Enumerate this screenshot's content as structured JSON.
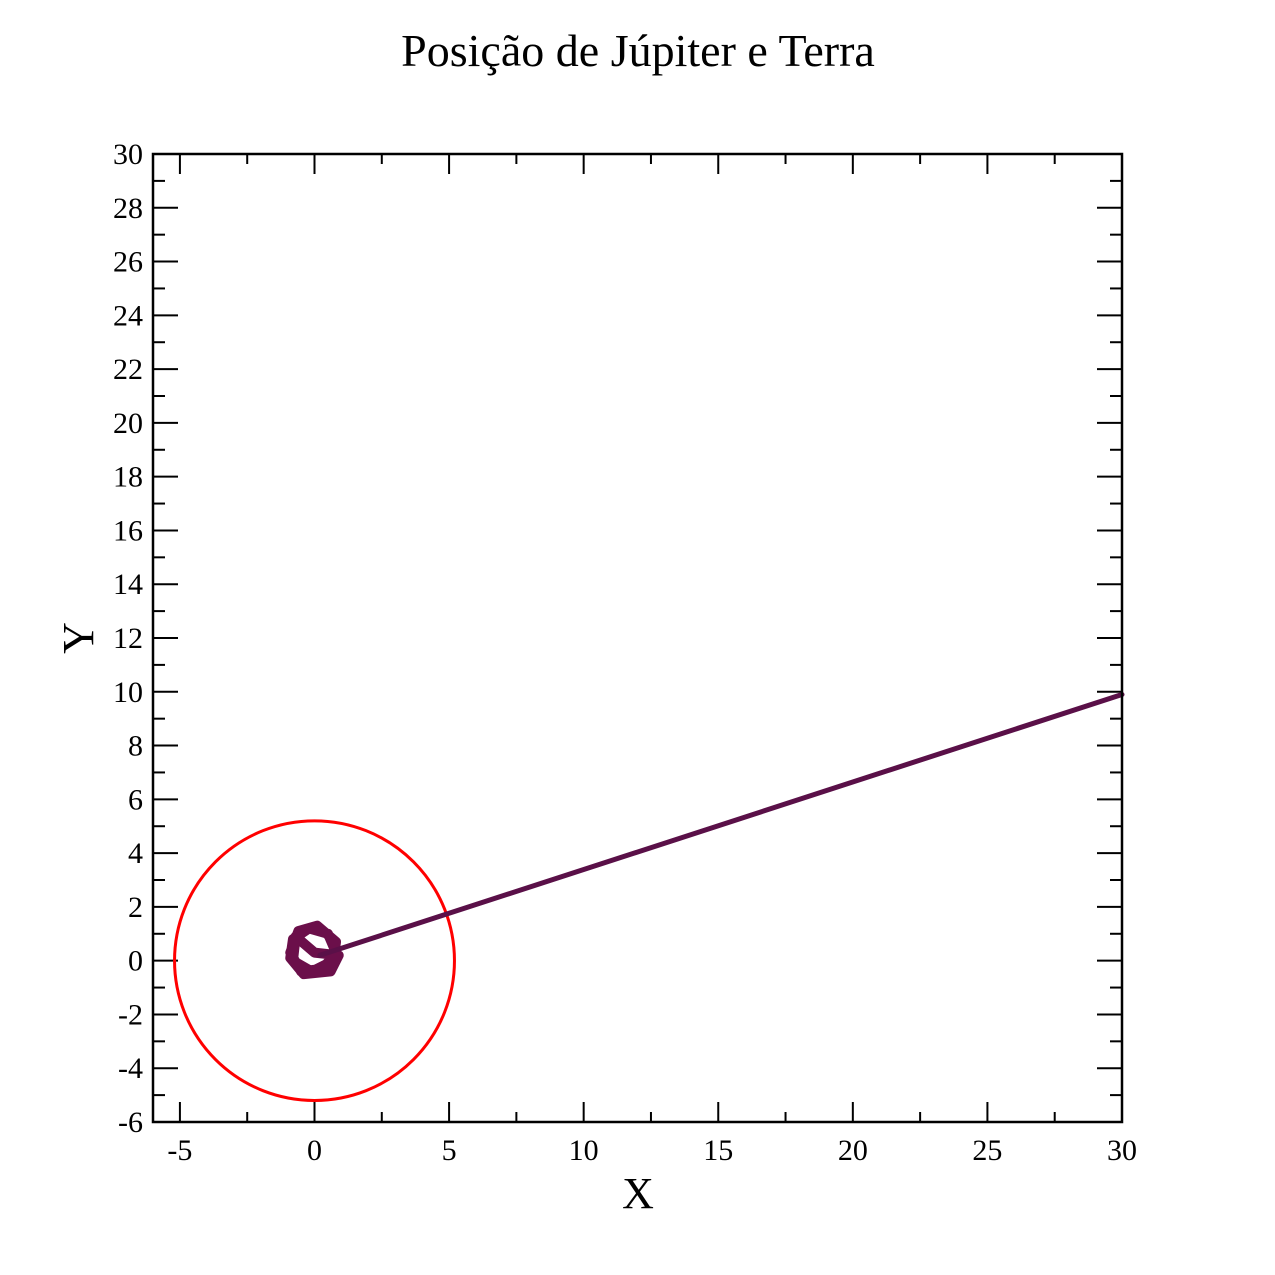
{
  "chart_data": {
    "type": "line",
    "title": "Posição de Júpiter e Terra",
    "xlabel": "X",
    "ylabel": "Y",
    "xlim": [
      -6,
      30
    ],
    "ylim": [
      -6,
      30
    ],
    "x_ticks": [
      -5,
      0,
      5,
      10,
      15,
      20,
      25,
      30
    ],
    "x_tick_labels": [
      "-5",
      "0",
      "5",
      "10",
      "15",
      "20",
      "25",
      "30"
    ],
    "y_ticks": [
      -6,
      -4,
      -2,
      0,
      2,
      4,
      6,
      8,
      10,
      12,
      14,
      16,
      18,
      20,
      22,
      24,
      26,
      28,
      30
    ],
    "y_tick_labels": [
      "-6",
      "-4",
      "-2",
      "0",
      "2",
      "4",
      "6",
      "8",
      "10",
      "12",
      "14",
      "16",
      "18",
      "20",
      "22",
      "24",
      "26",
      "28",
      "30"
    ],
    "grid": false,
    "legend": "none",
    "series": [
      {
        "color": "#ff0000",
        "shape": "circle",
        "center": [
          0,
          0
        ],
        "radius": 5.2
      },
      {
        "color": "#6b0f4a",
        "shape": "loops",
        "x": [
          0.0,
          0.9,
          0.6,
          -0.4,
          -0.9,
          -0.8,
          -0.2,
          0.5,
          0.8,
          0.3,
          -0.5,
          -0.9,
          -0.6,
          0.1,
          0.8,
          0.7,
          -0.1,
          -0.8,
          -0.7,
          0.0
        ],
        "y": [
          0.3,
          0.2,
          -0.4,
          -0.5,
          0.1,
          0.8,
          1.2,
          1.0,
          0.3,
          -0.3,
          -0.4,
          0.3,
          1.1,
          1.3,
          0.7,
          0.0,
          -0.4,
          0.0,
          0.9,
          0.3
        ]
      },
      {
        "color": "#5a1048",
        "shape": "line",
        "x": [
          0.2,
          30
        ],
        "y": [
          0.2,
          9.9
        ]
      }
    ]
  }
}
